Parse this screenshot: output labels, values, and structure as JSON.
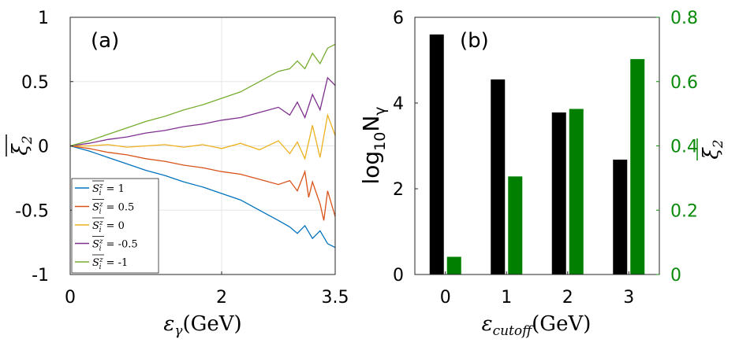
{
  "chart_data": [
    {
      "panel": "(a)",
      "type": "line",
      "xlabel": "εγ(GeV)",
      "ylabel": "ξ2 (mean)",
      "xlim": [
        0,
        3.5
      ],
      "ylim": [
        -1,
        1
      ],
      "x_ticks": [
        "0",
        "2",
        "3.5"
      ],
      "y_ticks": [
        "-1",
        "-0.5",
        "0",
        "0.5",
        "1"
      ],
      "grid": true,
      "legend_position": "bottom-left",
      "series": [
        {
          "name": "S_i^z = 1",
          "legend_value": "= 1",
          "color": "#0072BD",
          "x": [
            0,
            0.25,
            0.5,
            0.75,
            1.0,
            1.25,
            1.5,
            1.75,
            2.0,
            2.25,
            2.5,
            2.75,
            2.9,
            3.0,
            3.1,
            3.2,
            3.3,
            3.4,
            3.5
          ],
          "y": [
            0,
            -0.04,
            -0.09,
            -0.14,
            -0.19,
            -0.23,
            -0.28,
            -0.32,
            -0.37,
            -0.42,
            -0.5,
            -0.58,
            -0.63,
            -0.68,
            -0.62,
            -0.72,
            -0.66,
            -0.76,
            -0.79
          ]
        },
        {
          "name": "S_i^z = 0.5",
          "legend_value": "= 0.5",
          "color": "#D95319",
          "x": [
            0,
            0.25,
            0.5,
            0.75,
            1.0,
            1.25,
            1.5,
            1.75,
            2.0,
            2.25,
            2.5,
            2.75,
            2.9,
            3.0,
            3.1,
            3.15,
            3.2,
            3.3,
            3.35,
            3.4,
            3.5
          ],
          "y": [
            0,
            -0.02,
            -0.05,
            -0.07,
            -0.1,
            -0.12,
            -0.15,
            -0.17,
            -0.2,
            -0.22,
            -0.26,
            -0.3,
            -0.27,
            -0.35,
            -0.2,
            -0.4,
            -0.28,
            -0.45,
            -0.58,
            -0.35,
            -0.55
          ]
        },
        {
          "name": "S_i^z = 0",
          "legend_value": "= 0",
          "color": "#EDB120",
          "x": [
            0,
            0.25,
            0.5,
            0.75,
            1.0,
            1.25,
            1.5,
            1.75,
            2.0,
            2.25,
            2.5,
            2.75,
            2.9,
            3.0,
            3.1,
            3.2,
            3.3,
            3.4,
            3.5
          ],
          "y": [
            0,
            0,
            0.01,
            -0.01,
            0,
            0.01,
            -0.01,
            0.01,
            -0.02,
            0.02,
            -0.03,
            0.04,
            -0.06,
            0.03,
            -0.1,
            0.16,
            -0.09,
            0.24,
            0.08
          ]
        },
        {
          "name": "S_i^z = -0.5",
          "legend_value": "= -0.5",
          "color": "#7E2F8E",
          "x": [
            0,
            0.25,
            0.5,
            0.75,
            1.0,
            1.25,
            1.5,
            1.75,
            2.0,
            2.25,
            2.5,
            2.75,
            2.9,
            3.0,
            3.1,
            3.2,
            3.3,
            3.4,
            3.5
          ],
          "y": [
            0,
            0.02,
            0.05,
            0.07,
            0.1,
            0.12,
            0.15,
            0.17,
            0.2,
            0.22,
            0.26,
            0.3,
            0.24,
            0.34,
            0.22,
            0.4,
            0.28,
            0.53,
            0.47
          ]
        },
        {
          "name": "S_i^z = -1",
          "legend_value": "= -1",
          "color": "#77AC30",
          "x": [
            0,
            0.25,
            0.5,
            0.75,
            1.0,
            1.25,
            1.5,
            1.75,
            2.0,
            2.25,
            2.5,
            2.75,
            2.9,
            3.0,
            3.1,
            3.2,
            3.3,
            3.4,
            3.5
          ],
          "y": [
            0,
            0.04,
            0.09,
            0.14,
            0.19,
            0.23,
            0.28,
            0.32,
            0.37,
            0.42,
            0.5,
            0.58,
            0.6,
            0.66,
            0.6,
            0.72,
            0.64,
            0.76,
            0.79
          ]
        }
      ]
    },
    {
      "panel": "(b)",
      "type": "bar",
      "xlabel": "εcutoff(GeV)",
      "categories": [
        "0",
        "1",
        "2",
        "3"
      ],
      "series": [
        {
          "name": "log10 Nγ",
          "axis": "left",
          "color": "#000000",
          "values": [
            5.6,
            4.55,
            3.78,
            2.68
          ]
        },
        {
          "name": "ξ2 (mean)",
          "axis": "right",
          "color": "#007f00",
          "values": [
            0.055,
            0.305,
            0.515,
            0.67
          ]
        }
      ],
      "left_ylabel_main": "log",
      "left_ylabel_sub": "10",
      "left_ylabel_tail": "N",
      "left_ylabel_sub2": "γ",
      "left_ylim": [
        0,
        6
      ],
      "left_ticks": [
        "0",
        "2",
        "4",
        "6"
      ],
      "right_ylim": [
        0,
        0.8
      ],
      "right_ticks": [
        "0",
        "0.2",
        "0.4",
        "0.6",
        "0.8"
      ],
      "grid": false
    }
  ],
  "labels": {
    "panel_a": "(a)",
    "panel_b": "(b)",
    "xa_title_main": "ε",
    "xa_title_sub": "γ",
    "xa_title_tail": "(GeV)",
    "xb_title_main": "ε",
    "xb_title_sub": "cutoff",
    "xb_title_tail": "(GeV)",
    "ya_title_main": "ξ",
    "ya_title_sub": "2",
    "yb_right_main": "ξ",
    "yb_right_sub": "2",
    "legend_prefix_main": "S",
    "legend_prefix_sup": "z",
    "legend_prefix_sub": "i"
  }
}
